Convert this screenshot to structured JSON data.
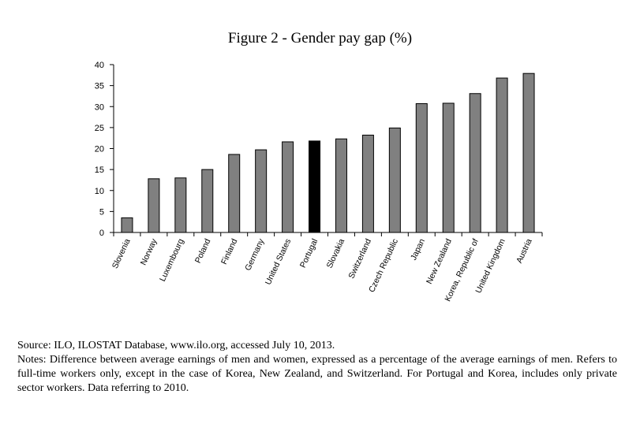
{
  "chart_data": {
    "type": "bar",
    "title": "Figure 2 - Gender pay gap (%)",
    "xlabel": "",
    "ylabel": "",
    "ylim": [
      0,
      40
    ],
    "yticks": [
      "0",
      "5",
      "10",
      "15",
      "20",
      "25",
      "30",
      "35",
      "40"
    ],
    "grid": false,
    "categories": [
      "Slovenia",
      "Norway",
      "Luxembourg",
      "Poland",
      "Finland",
      "Germany",
      "United States",
      "Portugal",
      "Slovakia",
      "Switzerland",
      "Czech Republic",
      "Japan",
      "New Zealand",
      "Korea, Republic of",
      "United Kingdom",
      "Austria"
    ],
    "values": [
      3.5,
      12.8,
      13.0,
      15.0,
      18.6,
      19.7,
      21.6,
      21.8,
      22.3,
      23.2,
      24.9,
      30.7,
      30.8,
      33.1,
      36.8,
      37.9
    ],
    "highlight": "Portugal",
    "colors": {
      "bar": "#808080",
      "highlight": "#000000",
      "axis": "#000000"
    }
  },
  "notes": {
    "source": "Source: ILO, ILOSTAT Database, www.ilo.org, accessed July 10, 2013.",
    "text": "Notes: Difference between average earnings of men and women, expressed as a percentage of the average earnings of men. Refers to full-time workers only, except in the case of Korea, New Zealand, and Switzerland. For Portugal and Korea, includes only private sector workers. Data referring to 2010."
  }
}
